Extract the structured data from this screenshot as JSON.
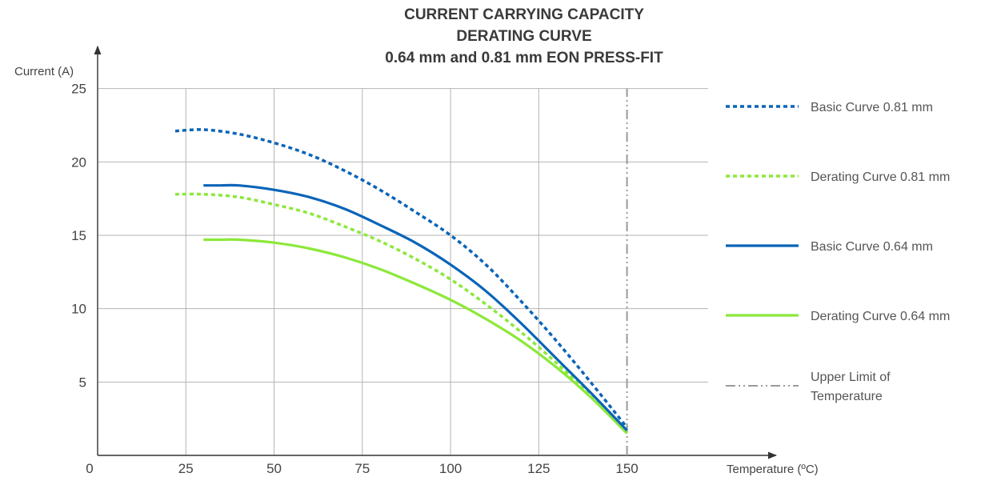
{
  "chart_data": {
    "type": "line",
    "title_lines": [
      "CURRENT CARRYING CAPACITY",
      "DERATING CURVE",
      "0.64 mm and 0.81 mm EON PRESS-FIT"
    ],
    "xlabel": "Temperature (ºC)",
    "ylabel": "Current  (A)",
    "x_origin_label": "0",
    "x_ticks": [
      25,
      50,
      75,
      100,
      125,
      150
    ],
    "y_ticks": [
      5,
      10,
      15,
      20,
      25
    ],
    "xlim": [
      0,
      190
    ],
    "ylim": [
      0,
      27
    ],
    "grid": true,
    "legend_position": "right",
    "colors": {
      "blue": "#0a64b8",
      "green": "#8ce83a",
      "limit": "#9a9a9a",
      "grid": "#b4b4b4",
      "axis": "#333333"
    },
    "series": [
      {
        "name": "Basic Curve 0.81 mm",
        "style": "dotted",
        "color": "#0a64b8",
        "x": [
          22,
          30,
          40,
          50,
          60,
          70,
          80,
          90,
          100,
          110,
          120,
          130,
          140,
          150
        ],
        "y": [
          22.1,
          22.2,
          21.9,
          21.3,
          20.5,
          19.4,
          18.1,
          16.6,
          15.0,
          13.0,
          10.5,
          7.8,
          4.9,
          1.9
        ]
      },
      {
        "name": "Derating Curve 0.81 mm",
        "style": "dotted",
        "color": "#8ce83a",
        "x": [
          22,
          30,
          40,
          50,
          60,
          70,
          80,
          90,
          100,
          110,
          120,
          130,
          140,
          150
        ],
        "y": [
          17.8,
          17.8,
          17.6,
          17.1,
          16.5,
          15.6,
          14.6,
          13.4,
          12.0,
          10.3,
          8.4,
          6.3,
          4.0,
          1.6
        ]
      },
      {
        "name": "Basic Curve 0.64 mm",
        "style": "solid",
        "color": "#0a64b8",
        "x": [
          30,
          35,
          40,
          50,
          60,
          70,
          80,
          90,
          100,
          110,
          120,
          130,
          140,
          150
        ],
        "y": [
          18.4,
          18.4,
          18.4,
          18.1,
          17.6,
          16.8,
          15.7,
          14.5,
          13.0,
          11.2,
          9.0,
          6.6,
          4.2,
          1.7
        ]
      },
      {
        "name": "Derating Curve 0.64 mm",
        "style": "solid",
        "color": "#8ce83a",
        "x": [
          30,
          35,
          40,
          50,
          60,
          70,
          80,
          90,
          100,
          110,
          120,
          130,
          140,
          150
        ],
        "y": [
          14.7,
          14.7,
          14.7,
          14.5,
          14.1,
          13.5,
          12.7,
          11.7,
          10.6,
          9.3,
          7.8,
          6.0,
          3.9,
          1.5
        ]
      }
    ],
    "limit_line": {
      "name": "Upper Limit of Temperature",
      "name_lines": [
        "Upper Limit of",
        "Temperature"
      ],
      "x": 150,
      "style": "dash-dot-dot",
      "color": "#9a9a9a"
    }
  }
}
